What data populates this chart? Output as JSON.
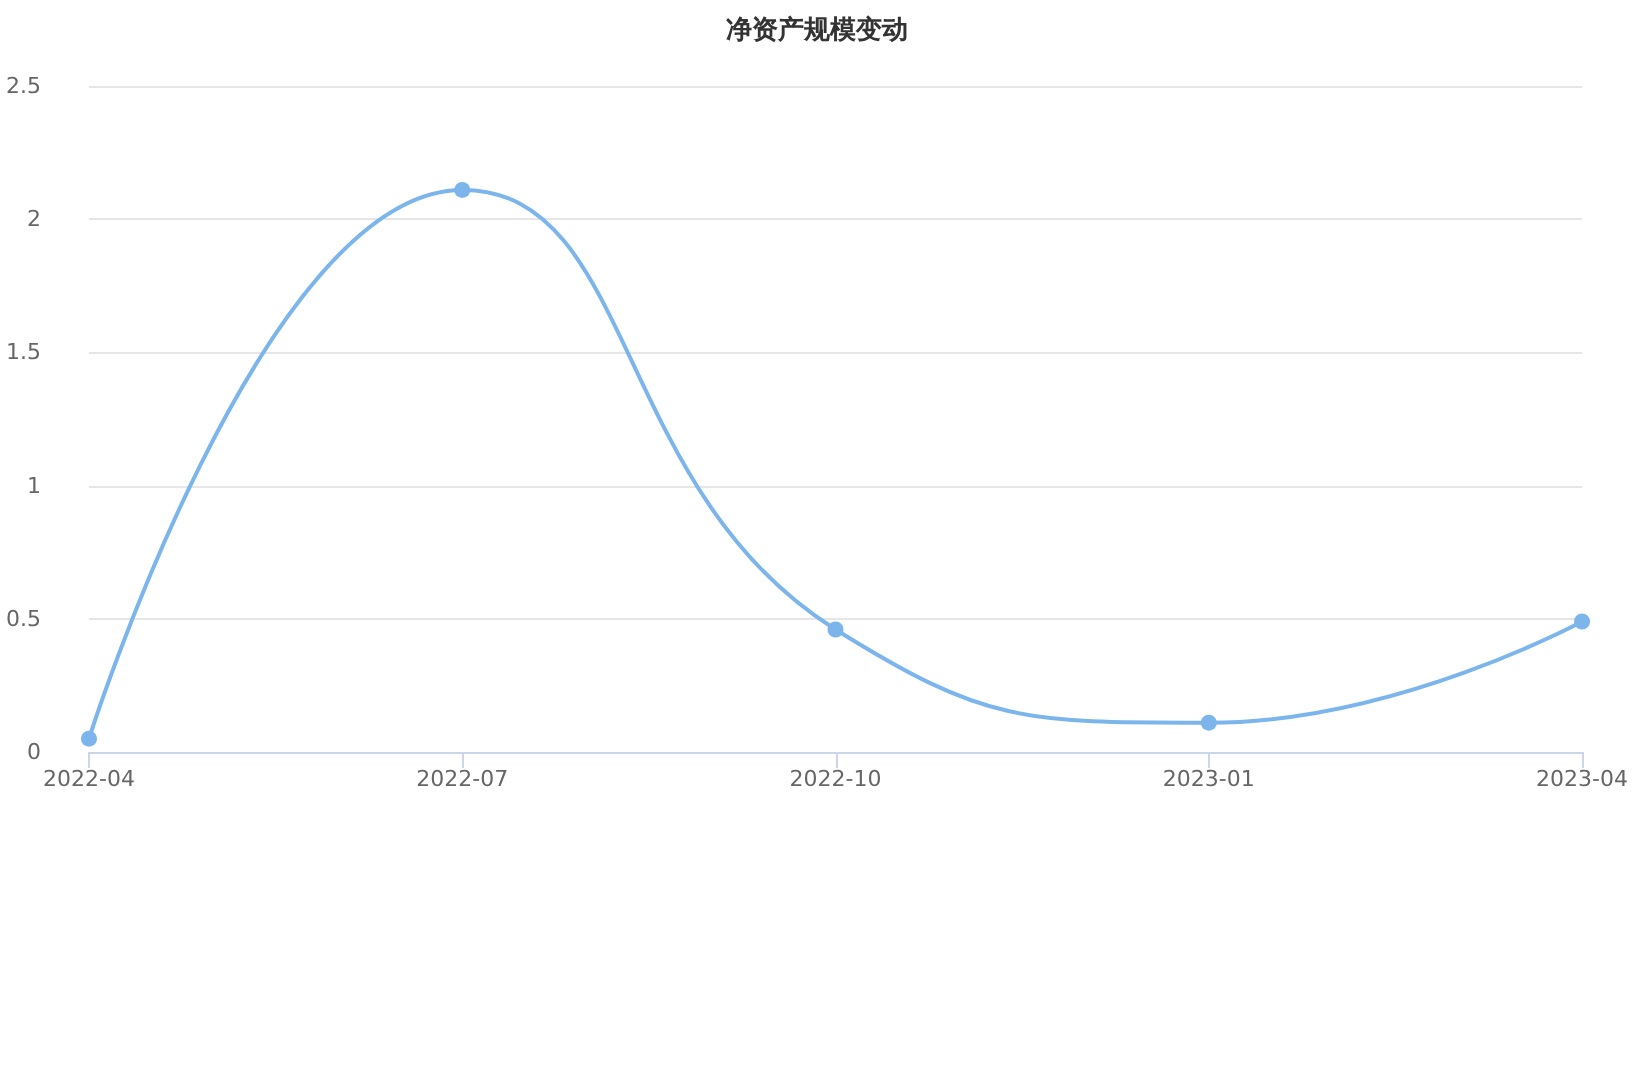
{
  "chart_data": {
    "type": "line",
    "title": "净资产规模变动",
    "categories": [
      "2022-04",
      "2022-07",
      "2022-10",
      "2023-01",
      "2023-04"
    ],
    "series": [
      {
        "color": "#7cb5ec",
        "values": [
          0.05,
          2.11,
          0.46,
          0.11,
          0.49
        ]
      }
    ],
    "ylim": [
      0,
      2.5
    ],
    "yticks": [
      0,
      0.5,
      1,
      1.5,
      2,
      2.5
    ],
    "grid": "y",
    "marker": "circle",
    "line_style": "solid"
  }
}
